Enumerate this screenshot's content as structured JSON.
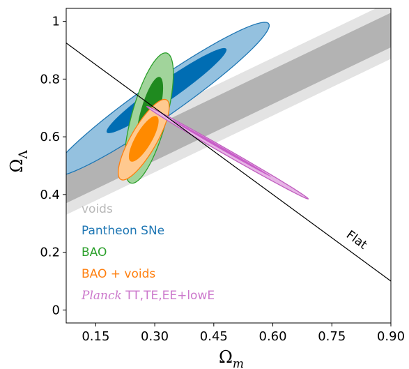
{
  "chart_data": {
    "type": "contour",
    "xlabel": "Ω",
    "xlabel_sub": "m",
    "ylabel": "Ω",
    "ylabel_sub": "Λ",
    "xlim": [
      0.075,
      0.9
    ],
    "ylim": [
      -0.045,
      1.045
    ],
    "xticks": [
      0.15,
      0.3,
      0.45,
      0.6,
      0.75,
      0.9
    ],
    "xtick_labels": [
      "0.15",
      "0.30",
      "0.45",
      "0.60",
      "0.75",
      "0.90"
    ],
    "yticks": [
      0,
      0.2,
      0.4,
      0.6,
      0.8,
      1
    ],
    "ytick_labels": [
      "0",
      "0.2",
      "0.4",
      "0.6",
      "0.8",
      "1"
    ],
    "grid": false,
    "flat_line": {
      "label": "Flat",
      "points": [
        [
          0.075,
          0.925
        ],
        [
          0.9,
          0.1
        ]
      ]
    },
    "voids_band": {
      "name": "voids",
      "outer_color": "#e3e3e3",
      "inner_color": "#b3b3b3",
      "outer": {
        "upper": [
          [
            0.075,
            0.53
          ],
          [
            0.9,
            1.07
          ]
        ],
        "lower": [
          [
            0.075,
            0.33
          ],
          [
            0.9,
            0.87
          ]
        ]
      },
      "inner": {
        "upper": [
          [
            0.075,
            0.49
          ],
          [
            0.9,
            1.03
          ]
        ],
        "lower": [
          [
            0.075,
            0.37
          ],
          [
            0.9,
            0.91
          ]
        ]
      }
    },
    "series": [
      {
        "name": "Pantheon SNe",
        "color": "#1f77b4",
        "fill_outer": "#94c1df",
        "fill_inner": "#006db3",
        "outer": {
          "center": [
            0.315,
            0.73
          ],
          "semi_axes": [
            0.38,
            0.055
          ],
          "angle_deg": 44
        },
        "inner": {
          "center": [
            0.33,
            0.76
          ],
          "semi_axes": [
            0.21,
            0.03
          ],
          "angle_deg": 44
        }
      },
      {
        "name": "BAO",
        "color": "#2ca02c",
        "fill_outer": "#a1d49b",
        "fill_inner": "#1f8a1f",
        "outer": {
          "center": [
            0.285,
            0.665
          ],
          "semi_axes": [
            0.23,
            0.045
          ],
          "angle_deg": 79
        },
        "inner": {
          "center": [
            0.287,
            0.68
          ],
          "semi_axes": [
            0.13,
            0.024
          ],
          "angle_deg": 79
        }
      },
      {
        "name": "BAO + voids",
        "color": "#ff7f0e",
        "fill_outer": "#ffc98f",
        "fill_inner": "#ff8a00",
        "outer": {
          "center": [
            0.272,
            0.59
          ],
          "semi_axes": [
            0.15,
            0.035
          ],
          "angle_deg": 68
        },
        "inner": {
          "center": [
            0.272,
            0.593
          ],
          "semi_axes": [
            0.085,
            0.022
          ],
          "angle_deg": 68
        }
      },
      {
        "name": "Planck",
        "name_suffix": " TT,TE,EE+lowE",
        "color": "#c05fbf",
        "fill_outer": "#e7b4e6",
        "fill_inner": "#c85ec8",
        "outer": {
          "center": [
            0.485,
            0.545
          ],
          "semi_axes": [
            0.26,
            0.009
          ],
          "angle_deg": -38
        },
        "inner": {
          "center": [
            0.47,
            0.56
          ],
          "semi_axes": [
            0.16,
            0.004
          ],
          "angle_deg": -38
        }
      }
    ],
    "legend": {
      "placement": "lower-left",
      "entries": [
        {
          "label": "voids",
          "color": "#b8b8b8"
        },
        {
          "label": "Pantheon SNe",
          "color": "#1f77b4"
        },
        {
          "label": "BAO",
          "color": "#2ca02c"
        },
        {
          "label": "BAO + voids",
          "color": "#ff7f0e"
        },
        {
          "label": "Planck",
          "suffix": " TT,TE,EE+lowE",
          "color": "#cc79cc"
        }
      ]
    }
  }
}
